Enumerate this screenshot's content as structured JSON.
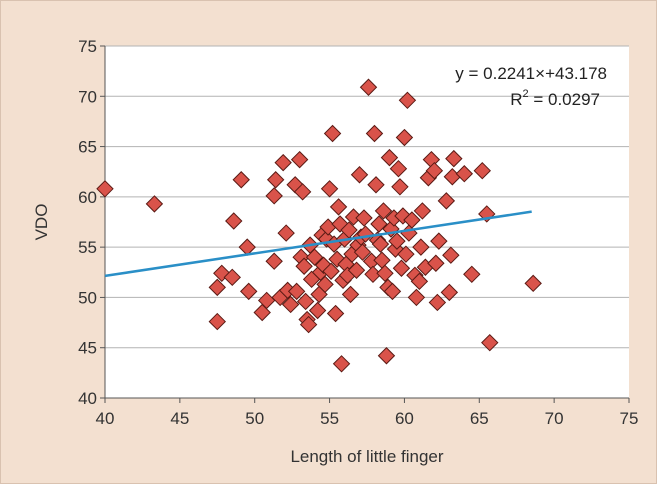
{
  "chart_data": {
    "type": "scatter",
    "title": "",
    "xlabel": "Length of little finger",
    "ylabel": "VDO",
    "xlim": [
      40,
      75
    ],
    "ylim": [
      40,
      75
    ],
    "xticks": [
      "40",
      "45",
      "50",
      "55",
      "60",
      "65",
      "70",
      "75"
    ],
    "yticks": [
      "40",
      "45",
      "50",
      "55",
      "60",
      "65",
      "70",
      "75"
    ],
    "grid": "horizontal",
    "legend": "none",
    "colors": {
      "marker_fill": "#d9534a",
      "marker_edge": "#5a1a14",
      "trendline": "#2a8fc7",
      "grid": "#b3b3b3",
      "plot_background": "#ffffff",
      "figure_background": "#f3e0d0"
    },
    "annotation": {
      "equation": "y = 0.2241×+43.178",
      "r2_prefix": "R",
      "r2_exponent": "2",
      "r2_value": " = 0.0297"
    },
    "trendline": {
      "slope": 0.2241,
      "intercept": 43.178,
      "x_range": [
        40,
        68.5
      ]
    },
    "series": [
      {
        "points": [
          [
            40.0,
            60.8
          ],
          [
            43.3,
            59.3
          ],
          [
            47.5,
            51.0
          ],
          [
            47.5,
            47.6
          ],
          [
            47.8,
            52.4
          ],
          [
            48.5,
            52.0
          ],
          [
            48.6,
            57.6
          ],
          [
            49.1,
            61.7
          ],
          [
            49.5,
            55.0
          ],
          [
            49.6,
            50.6
          ],
          [
            50.5,
            48.5
          ],
          [
            50.8,
            49.7
          ],
          [
            51.3,
            53.6
          ],
          [
            51.3,
            60.1
          ],
          [
            51.4,
            61.7
          ],
          [
            51.7,
            50.0
          ],
          [
            51.9,
            63.4
          ],
          [
            52.1,
            56.4
          ],
          [
            52.2,
            50.7
          ],
          [
            52.4,
            49.3
          ],
          [
            52.7,
            61.2
          ],
          [
            52.8,
            50.6
          ],
          [
            53.0,
            63.7
          ],
          [
            53.1,
            54.0
          ],
          [
            53.2,
            60.5
          ],
          [
            53.3,
            53.1
          ],
          [
            53.4,
            49.6
          ],
          [
            53.5,
            47.8
          ],
          [
            53.6,
            47.3
          ],
          [
            53.7,
            55.2
          ],
          [
            53.8,
            51.8
          ],
          [
            54.0,
            54.0
          ],
          [
            54.2,
            48.7
          ],
          [
            54.3,
            50.3
          ],
          [
            54.4,
            52.5
          ],
          [
            54.5,
            56.2
          ],
          [
            54.6,
            53.2
          ],
          [
            54.7,
            51.3
          ],
          [
            54.8,
            55.8
          ],
          [
            54.9,
            57.0
          ],
          [
            55.0,
            60.8
          ],
          [
            55.1,
            52.6
          ],
          [
            55.2,
            66.3
          ],
          [
            55.3,
            55.3
          ],
          [
            55.4,
            48.4
          ],
          [
            55.5,
            53.8
          ],
          [
            55.6,
            59.0
          ],
          [
            55.7,
            57.3
          ],
          [
            55.8,
            43.4
          ],
          [
            55.9,
            51.7
          ],
          [
            56.0,
            55.8
          ],
          [
            56.1,
            53.3
          ],
          [
            56.2,
            52.2
          ],
          [
            56.3,
            56.7
          ],
          [
            56.4,
            50.3
          ],
          [
            56.5,
            54.3
          ],
          [
            56.6,
            58.0
          ],
          [
            56.8,
            52.7
          ],
          [
            56.9,
            55.2
          ],
          [
            57.0,
            62.2
          ],
          [
            57.1,
            56.0
          ],
          [
            57.2,
            54.5
          ],
          [
            57.3,
            57.9
          ],
          [
            57.4,
            56.3
          ],
          [
            57.6,
            70.9
          ],
          [
            57.8,
            53.6
          ],
          [
            57.9,
            52.3
          ],
          [
            58.0,
            66.3
          ],
          [
            58.1,
            61.2
          ],
          [
            58.2,
            55.7
          ],
          [
            58.3,
            57.3
          ],
          [
            58.4,
            55.3
          ],
          [
            58.5,
            53.7
          ],
          [
            58.6,
            58.6
          ],
          [
            58.7,
            52.4
          ],
          [
            58.8,
            44.2
          ],
          [
            58.9,
            51.0
          ],
          [
            59.0,
            63.9
          ],
          [
            59.1,
            56.8
          ],
          [
            59.2,
            50.6
          ],
          [
            59.3,
            57.9
          ],
          [
            59.4,
            54.8
          ],
          [
            59.5,
            55.6
          ],
          [
            59.6,
            62.8
          ],
          [
            59.7,
            61.0
          ],
          [
            59.8,
            52.9
          ],
          [
            59.9,
            58.1
          ],
          [
            60.0,
            65.9
          ],
          [
            60.1,
            54.3
          ],
          [
            60.2,
            69.6
          ],
          [
            60.3,
            56.4
          ],
          [
            60.5,
            57.7
          ],
          [
            60.7,
            52.2
          ],
          [
            60.8,
            50.0
          ],
          [
            61.0,
            51.6
          ],
          [
            61.1,
            55.0
          ],
          [
            61.2,
            58.6
          ],
          [
            61.4,
            53.0
          ],
          [
            61.6,
            61.9
          ],
          [
            61.8,
            63.7
          ],
          [
            62.0,
            62.6
          ],
          [
            62.1,
            53.4
          ],
          [
            62.2,
            49.5
          ],
          [
            62.3,
            55.6
          ],
          [
            62.8,
            59.6
          ],
          [
            63.0,
            50.5
          ],
          [
            63.1,
            54.2
          ],
          [
            63.2,
            62.0
          ],
          [
            63.3,
            63.8
          ],
          [
            64.0,
            62.3
          ],
          [
            64.5,
            52.3
          ],
          [
            65.2,
            62.6
          ],
          [
            65.5,
            58.3
          ],
          [
            65.7,
            45.5
          ],
          [
            68.6,
            51.4
          ]
        ]
      }
    ]
  }
}
